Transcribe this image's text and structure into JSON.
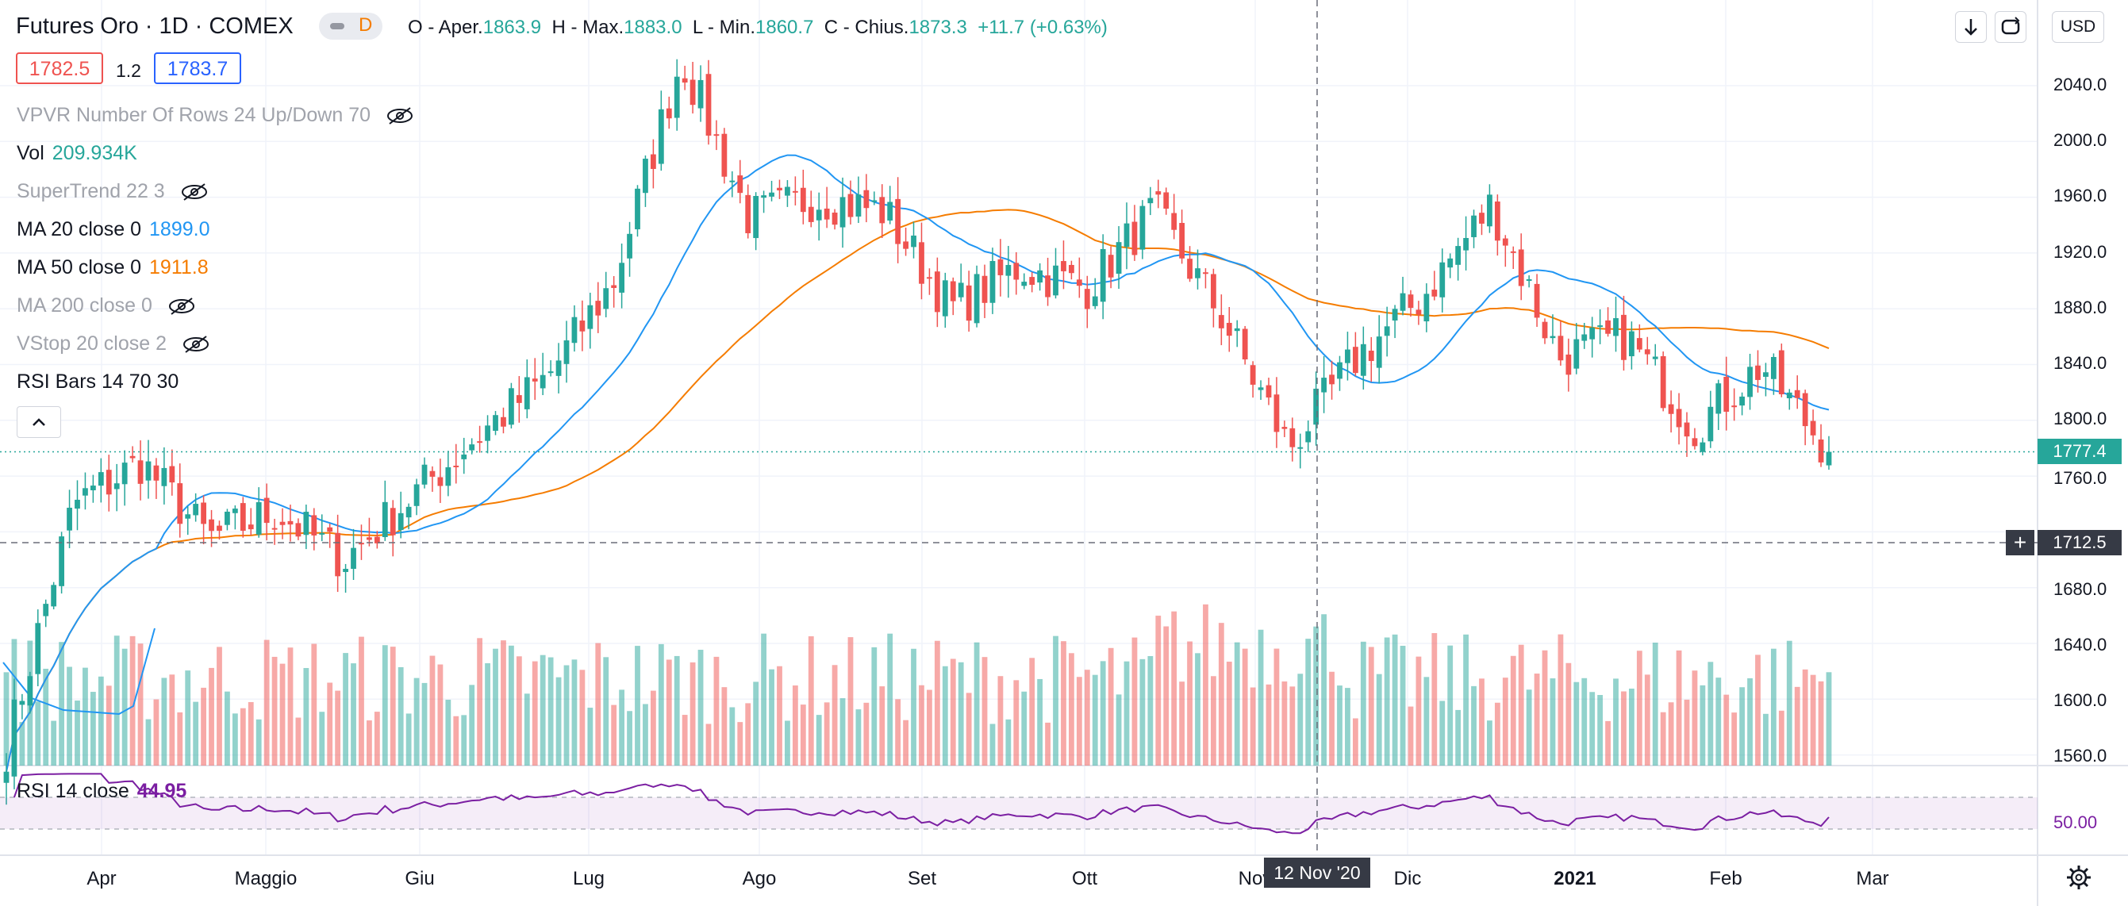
{
  "header": {
    "title": "Futures Oro · 1D · COMEX",
    "interval_badge": "D",
    "ohlc": {
      "open_label": "O - Aper.",
      "open": "1863.9",
      "high_label": "H - Max.",
      "high": "1883.0",
      "low_label": "L - Min.",
      "low": "1860.7",
      "close_label": "C - Chius.",
      "close": "1873.3",
      "change": "+11.7 (+0.63%)"
    },
    "bid": "1782.5",
    "spread": "1.2",
    "ask": "1783.7"
  },
  "indicators": [
    {
      "label": "VPVR Number Of Rows 24 Up/Down 70",
      "value": "",
      "hidden": true
    },
    {
      "label": "Vol",
      "value": "209.934K",
      "hidden": false,
      "color": "#26a69a"
    },
    {
      "label": "SuperTrend 22 3",
      "value": "",
      "hidden": true
    },
    {
      "label": "MA 20 close 0",
      "value": "1899.0",
      "hidden": false,
      "color": "#2196f3"
    },
    {
      "label": "MA 50 close 0",
      "value": "1911.8",
      "hidden": false,
      "color": "#f57c00"
    },
    {
      "label": "MA 200 close 0",
      "value": "",
      "hidden": true
    },
    {
      "label": "VStop 20 close 2",
      "value": "",
      "hidden": true
    },
    {
      "label": "RSI Bars 14 70 30",
      "value": "",
      "hidden": false
    }
  ],
  "rsi_pane": {
    "label": "RSI 14 close",
    "value": "44.95",
    "level_label": "50.00"
  },
  "toolbar": {
    "down_icon": "arrow-down-icon",
    "loop_icon": "refresh-icon",
    "currency": "USD"
  },
  "price_axis": {
    "ticks": [
      "2040.0",
      "2000.0",
      "1960.0",
      "1920.0",
      "1880.0",
      "1840.0",
      "1800.0",
      "1760.0",
      "1680.0",
      "1640.0",
      "1600.0",
      "1560.0"
    ],
    "last_price_tag": "1777.4",
    "crosshair_price_tag": "1712.5"
  },
  "time_axis": {
    "labels": [
      "Apr",
      "Maggio",
      "Giu",
      "Lug",
      "Ago",
      "Set",
      "Ott",
      "Nov",
      "Dic",
      "2021",
      "Feb",
      "Mar"
    ],
    "crosshair_date": "12 Nov '20"
  },
  "colors": {
    "up": "#26a69a",
    "down": "#ef5350",
    "ma20": "#2196f3",
    "ma50": "#f57c00",
    "rsi": "#7b1fa2"
  },
  "chart_data": {
    "type": "candlestick",
    "title": "Futures Oro · 1D · COMEX",
    "ylim": [
      1545,
      2075
    ],
    "x": [
      "Apr",
      "Maggio",
      "Giu",
      "Lug",
      "Ago",
      "Set",
      "Ott",
      "Nov",
      "Dic",
      "2021",
      "Feb",
      "Mar"
    ],
    "close_anchors": [
      {
        "date": "Mar",
        "close": 1565
      },
      {
        "date": "Apr",
        "close": 1740
      },
      {
        "date": "Apr",
        "close": 1770
      },
      {
        "date": "Maggio",
        "close": 1715
      },
      {
        "date": "Maggio",
        "close": 1735
      },
      {
        "date": "Giu",
        "close": 1700
      },
      {
        "date": "Giu",
        "close": 1745
      },
      {
        "date": "Lug",
        "close": 1790
      },
      {
        "date": "Lug",
        "close": 1830
      },
      {
        "date": "Lug",
        "close": 1900
      },
      {
        "date": "Ago",
        "close": 2060
      },
      {
        "date": "Ago",
        "close": 1945
      },
      {
        "date": "Set",
        "close": 1960
      },
      {
        "date": "Set",
        "close": 1950
      },
      {
        "date": "Ott",
        "close": 1880
      },
      {
        "date": "Ott",
        "close": 1910
      },
      {
        "date": "Nov",
        "close": 1895
      },
      {
        "date": "Nov",
        "close": 1950
      },
      {
        "date": "Nov",
        "close": 1875
      },
      {
        "date": "Dic",
        "close": 1780
      },
      {
        "date": "Dic",
        "close": 1845
      },
      {
        "date": "2021",
        "close": 1890
      },
      {
        "date": "2021",
        "close": 1955
      },
      {
        "date": "2021",
        "close": 1845
      },
      {
        "date": "Feb",
        "close": 1860
      },
      {
        "date": "Feb",
        "close": 1795
      },
      {
        "date": "Feb",
        "close": 1840
      },
      {
        "date": "Mar",
        "close": 1777.4
      }
    ],
    "ma20_value": 1899.0,
    "ma50_value": 1911.8,
    "rsi_value": 44.95
  }
}
